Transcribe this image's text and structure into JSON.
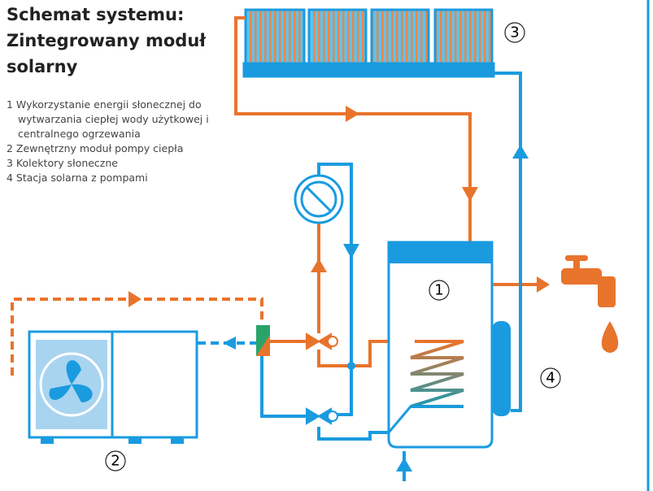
{
  "header": {
    "title": "Schemat systemu: Zintegrowany moduł solarny"
  },
  "legend": {
    "items": [
      "1 Wykorzystanie energii słonecznej do wytwarzania ciepłej wody użytkowej i centralnego ogrzewania",
      "2 Zewnętrzny moduł pompy ciepła",
      "3 Kolektory słoneczne",
      "4 Stacja solarna z pompami"
    ]
  },
  "nodes": [
    {
      "label": "1"
    },
    {
      "label": "2"
    },
    {
      "label": "3"
    },
    {
      "label": "4"
    }
  ]
}
